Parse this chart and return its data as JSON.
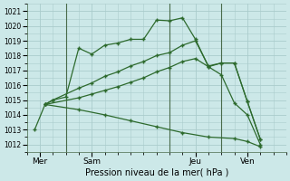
{
  "xlabel": "Pression niveau de la mer( hPa )",
  "bg_color": "#cce8e8",
  "grid_color": "#aacccc",
  "line_color": "#2d6a2d",
  "ylim": [
    1011.5,
    1021.5
  ],
  "yticks": [
    1012,
    1013,
    1014,
    1015,
    1016,
    1017,
    1018,
    1019,
    1020,
    1021
  ],
  "xlim": [
    0,
    10
  ],
  "xtick_labels": [
    "Mer",
    "Sam",
    "Jeu",
    "Ven"
  ],
  "xtick_positions": [
    0.5,
    2.5,
    6.5,
    8.5
  ],
  "vline_positions": [
    1.5,
    5.5,
    7.5
  ],
  "line1_x": [
    0.3,
    0.7,
    1.0,
    1.5,
    2.0,
    2.5,
    3.0,
    3.5,
    4.0,
    4.5,
    5.0,
    5.5,
    6.0,
    6.5,
    7.0,
    7.5,
    8.0,
    8.5,
    9.0
  ],
  "line1_y": [
    1013.0,
    1014.7,
    1015.0,
    1015.2,
    1018.5,
    1018.1,
    1018.7,
    1018.85,
    1019.1,
    1019.1,
    1020.4,
    1020.35,
    1020.55,
    1019.1,
    1017.25,
    1016.7,
    1014.8,
    1014.0,
    1012.0
  ],
  "line2_x": [
    0.7,
    1.0,
    2.0,
    2.5,
    3.0,
    3.5,
    4.0,
    4.5,
    5.0,
    5.5,
    6.0,
    6.5,
    7.0,
    7.5,
    8.0,
    8.5,
    9.0
  ],
  "line2_y": [
    1014.7,
    1015.0,
    1015.8,
    1016.15,
    1016.6,
    1016.9,
    1017.3,
    1017.6,
    1018.0,
    1018.2,
    1018.7,
    1019.0,
    1017.3,
    1017.5,
    1017.5,
    1014.9,
    1012.35
  ],
  "line3_x": [
    0.7,
    2.0,
    2.5,
    3.0,
    3.5,
    4.0,
    4.5,
    5.0,
    5.5,
    6.0,
    6.5,
    7.0,
    7.5,
    8.0,
    8.5,
    9.0
  ],
  "line3_y": [
    1014.7,
    1015.15,
    1015.4,
    1015.65,
    1015.9,
    1016.2,
    1016.5,
    1016.9,
    1017.2,
    1017.6,
    1017.8,
    1017.25,
    1017.5,
    1017.5,
    1014.9,
    1012.35
  ],
  "line4_x": [
    0.7,
    2.0,
    3.0,
    4.0,
    5.0,
    6.0,
    7.0,
    8.0,
    8.5,
    9.0
  ],
  "line4_y": [
    1014.7,
    1014.35,
    1014.0,
    1013.6,
    1013.2,
    1012.8,
    1012.5,
    1012.4,
    1012.2,
    1011.85
  ]
}
